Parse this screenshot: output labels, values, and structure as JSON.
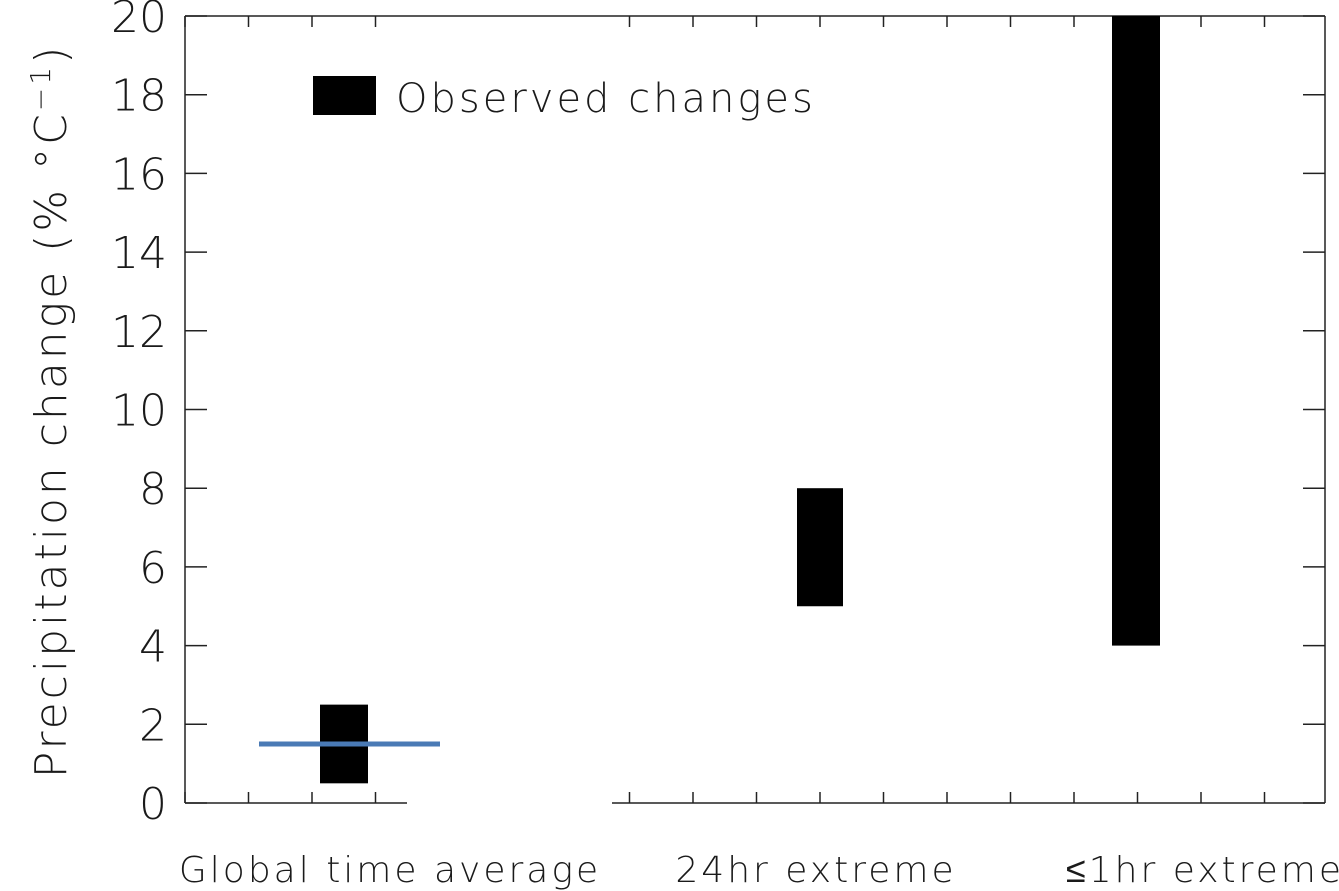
{
  "chart_data": {
    "type": "bar",
    "title": "",
    "ylabel_main": "Precipitation change (% °C",
    "ylabel_sup": "−1",
    "ylabel_close": ")",
    "xlabel": "",
    "ylim": [
      0,
      20
    ],
    "yticks": [
      0,
      2,
      4,
      6,
      8,
      10,
      12,
      14,
      16,
      18,
      20
    ],
    "categories": [
      "Global time average",
      "24hr extreme",
      "≤1hr extreme"
    ],
    "series": [
      {
        "name": "Observed changes",
        "color": "#000000",
        "ranges": [
          [
            0.5,
            2.5
          ],
          [
            5,
            8
          ],
          [
            4,
            20
          ]
        ]
      }
    ],
    "reference_line": {
      "category": "Global time average",
      "value": 1.5,
      "color": "#4a7ab5"
    },
    "legend_position": "top-left",
    "grid": false
  }
}
